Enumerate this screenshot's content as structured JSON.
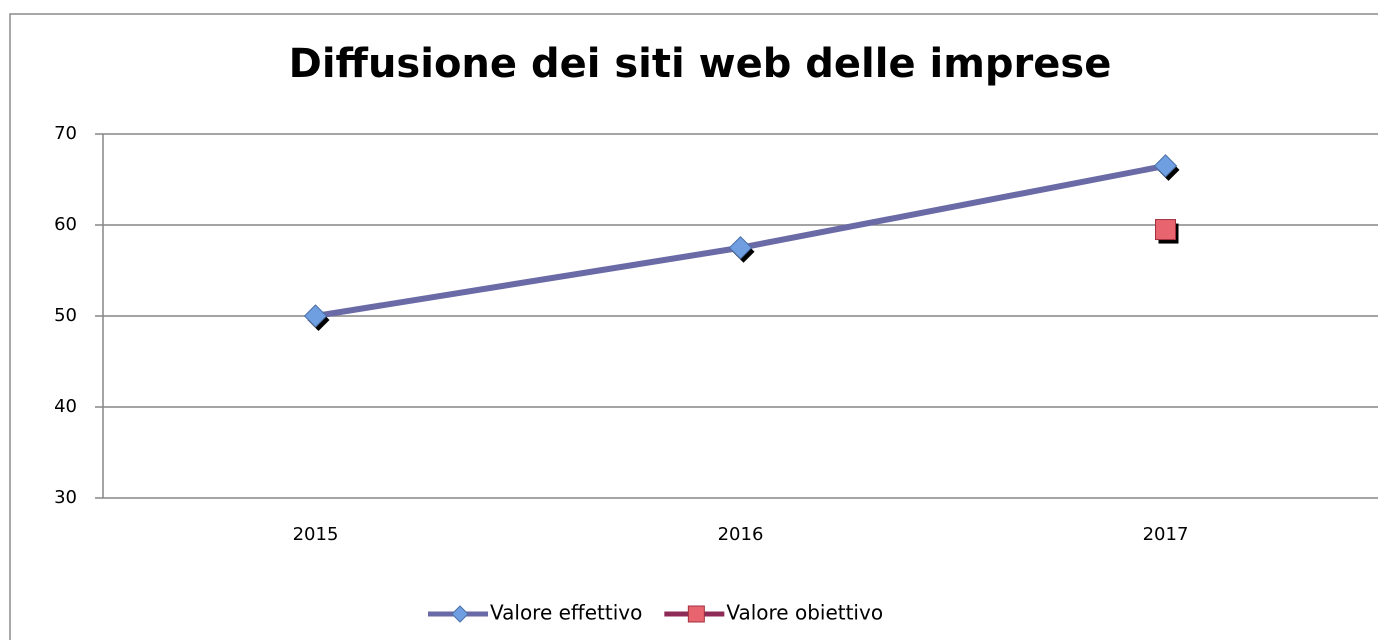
{
  "chart_data": {
    "type": "line",
    "title": "Diffusione dei siti web delle imprese",
    "categories": [
      "2015",
      "2016",
      "2017"
    ],
    "series": [
      {
        "name": "Valore effettivo",
        "color": "#6a6aa6",
        "marker": "diamond",
        "marker_color": "#6f9fe0",
        "values": [
          50,
          57.5,
          66.5
        ]
      },
      {
        "name": "Valore obiettivo",
        "color": "#8e2a57",
        "marker": "square",
        "marker_color": "#e8646f",
        "values": [
          null,
          null,
          59.5
        ]
      }
    ],
    "ylim": [
      30,
      70
    ],
    "yticks": [
      30,
      40,
      50,
      60,
      70
    ],
    "grid": true,
    "legend": "bottom"
  }
}
